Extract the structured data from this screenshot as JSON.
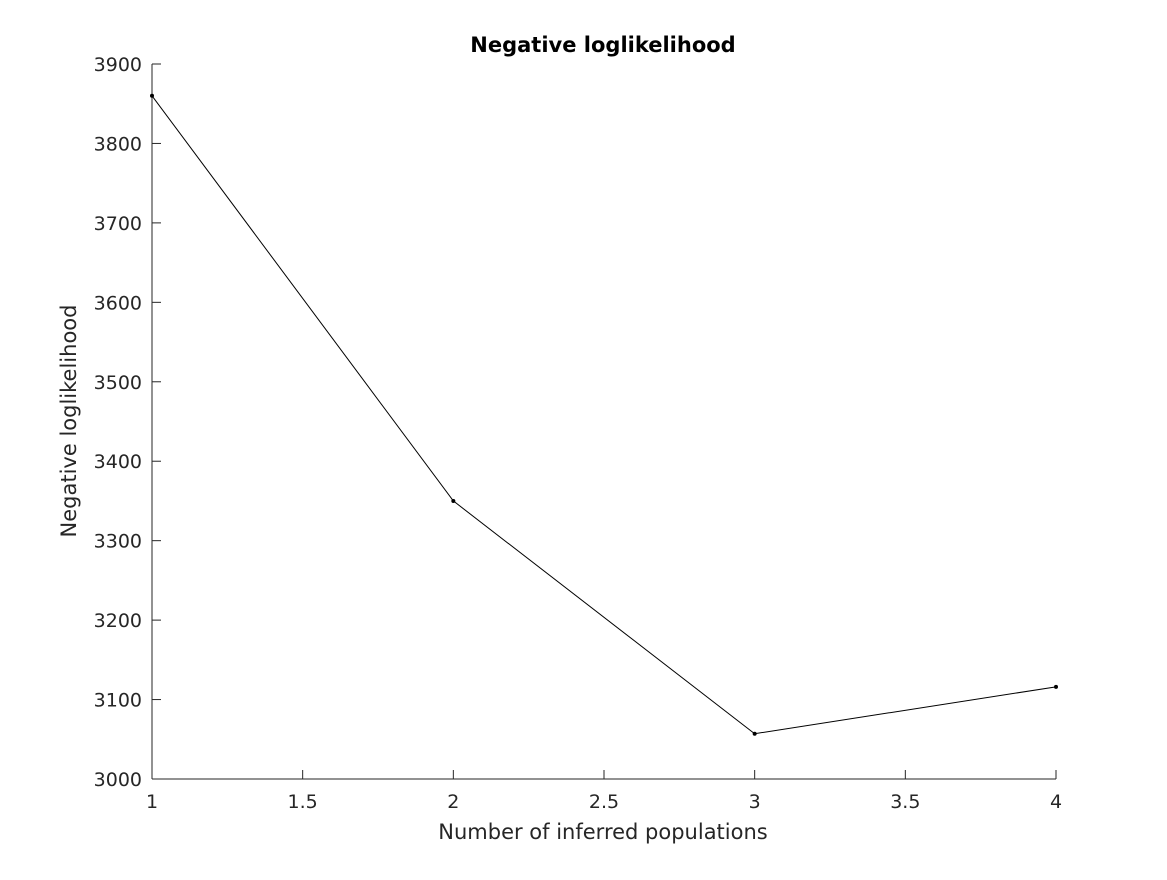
{
  "chart_data": {
    "type": "line",
    "title": "Negative loglikelihood",
    "xlabel": "Number of inferred populations",
    "ylabel": "Negative loglikelihood",
    "xlim": [
      1,
      4
    ],
    "ylim": [
      3000,
      3900
    ],
    "x_ticks": [
      "1",
      "1.5",
      "2",
      "2.5",
      "3",
      "3.5",
      "4"
    ],
    "y_ticks": [
      "3000",
      "3100",
      "3200",
      "3300",
      "3400",
      "3500",
      "3600",
      "3700",
      "3800",
      "3900"
    ],
    "grid": false,
    "legend": "none",
    "series": [
      {
        "x": [
          1,
          2,
          3,
          4
        ],
        "values": [
          3860,
          3350,
          3057,
          3116
        ],
        "color": "#000000",
        "marker": "dot"
      }
    ]
  }
}
